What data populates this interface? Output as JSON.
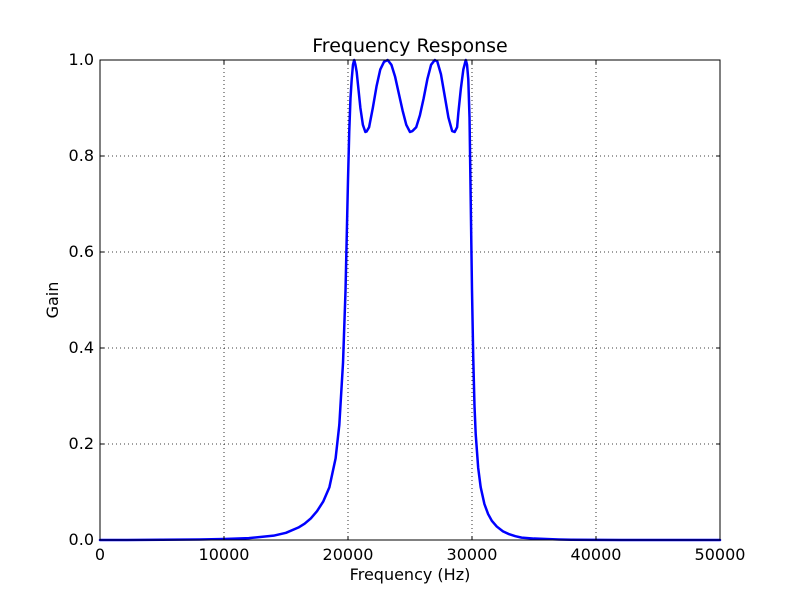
{
  "chart_data": {
    "type": "line",
    "title": "Frequency Response",
    "xlabel": "Frequency (Hz)",
    "ylabel": "Gain",
    "xlim": [
      0,
      50000
    ],
    "ylim": [
      0,
      1.0
    ],
    "xticks": [
      0,
      10000,
      20000,
      30000,
      40000,
      50000
    ],
    "xtick_labels": [
      "0",
      "10000",
      "20000",
      "30000",
      "40000",
      "50000"
    ],
    "yticks": [
      0.0,
      0.2,
      0.4,
      0.6,
      0.8,
      1.0
    ],
    "ytick_labels": [
      "0.0",
      "0.2",
      "0.4",
      "0.6",
      "0.8",
      "1.0"
    ],
    "grid": true,
    "line_color": "#0000ff",
    "series": [
      {
        "x": [
          0,
          2000,
          5000,
          8000,
          10000,
          12000,
          14000,
          15000,
          16000,
          16500,
          17000,
          17500,
          18000,
          18500,
          19000,
          19300,
          19600,
          19800,
          20000,
          20100,
          20200,
          20300,
          20400,
          20500,
          20600,
          20700,
          20800,
          21000,
          21200,
          21400,
          21500,
          21700,
          22000,
          22300,
          22600,
          22900,
          23200,
          23500,
          23800,
          24100,
          24400,
          24700,
          25000,
          25200,
          25500,
          25800,
          26100,
          26400,
          26700,
          27000,
          27200,
          27500,
          27800,
          28100,
          28400,
          28600,
          28800,
          28900,
          29100,
          29300,
          29500,
          29600,
          29700,
          29800,
          29900,
          30000,
          30100,
          30200,
          30300,
          30500,
          30700,
          31000,
          31300,
          31600,
          32000,
          32500,
          33000,
          33500,
          34000,
          35000,
          36000,
          37000,
          38000,
          40000,
          42000,
          45000,
          50000
        ],
        "y": [
          0.0,
          0.0,
          0.0005,
          0.001,
          0.002,
          0.004,
          0.009,
          0.015,
          0.026,
          0.034,
          0.045,
          0.06,
          0.08,
          0.11,
          0.17,
          0.24,
          0.37,
          0.52,
          0.75,
          0.85,
          0.92,
          0.96,
          0.99,
          1.0,
          0.99,
          0.975,
          0.95,
          0.9,
          0.865,
          0.85,
          0.851,
          0.86,
          0.9,
          0.945,
          0.98,
          0.996,
          1.0,
          0.99,
          0.965,
          0.93,
          0.895,
          0.865,
          0.85,
          0.852,
          0.86,
          0.885,
          0.92,
          0.96,
          0.99,
          1.0,
          0.997,
          0.97,
          0.925,
          0.88,
          0.852,
          0.85,
          0.86,
          0.89,
          0.94,
          0.98,
          1.0,
          0.99,
          0.96,
          0.88,
          0.7,
          0.52,
          0.38,
          0.28,
          0.22,
          0.15,
          0.11,
          0.075,
          0.054,
          0.04,
          0.028,
          0.018,
          0.012,
          0.008,
          0.005,
          0.003,
          0.002,
          0.001,
          0.0005,
          0.0002,
          0.0001,
          0.0,
          0.0
        ]
      }
    ]
  }
}
